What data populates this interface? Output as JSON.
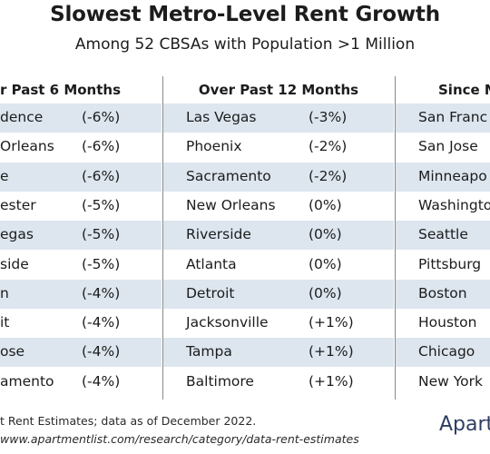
{
  "title": "Slowest Metro-Level Rent Growth",
  "subtitle": "Among 52 CBSAs with Population >1 Million",
  "chart_data": {
    "type": "table",
    "panels": [
      {
        "header": "r Past 6 Months",
        "rows": [
          {
            "city": "dence",
            "value": "(-6%)"
          },
          {
            "city": "Orleans",
            "value": "(-6%)"
          },
          {
            "city": "e",
            "value": "(-6%)"
          },
          {
            "city": "ester",
            "value": "(-5%)"
          },
          {
            "city": "egas",
            "value": "(-5%)"
          },
          {
            "city": "side",
            "value": "(-5%)"
          },
          {
            "city": "n",
            "value": "(-4%)"
          },
          {
            "city": "it",
            "value": "(-4%)"
          },
          {
            "city": "ose",
            "value": "(-4%)"
          },
          {
            "city": "amento",
            "value": "(-4%)"
          }
        ]
      },
      {
        "header": "Over Past 12 Months",
        "rows": [
          {
            "city": "Las Vegas",
            "value": "(-3%)"
          },
          {
            "city": "Phoenix",
            "value": "(-2%)"
          },
          {
            "city": "Sacramento",
            "value": "(-2%)"
          },
          {
            "city": "New Orleans",
            "value": "(0%)"
          },
          {
            "city": "Riverside",
            "value": "(0%)"
          },
          {
            "city": "Atlanta",
            "value": "(0%)"
          },
          {
            "city": "Detroit",
            "value": "(0%)"
          },
          {
            "city": "Jacksonville",
            "value": "(+1%)"
          },
          {
            "city": "Tampa",
            "value": "(+1%)"
          },
          {
            "city": "Baltimore",
            "value": "(+1%)"
          }
        ]
      },
      {
        "header": "Since M",
        "rows": [
          {
            "city": "San Franc",
            "value": ""
          },
          {
            "city": "San Jose",
            "value": ""
          },
          {
            "city": "Minneapo",
            "value": ""
          },
          {
            "city": "Washingto",
            "value": ""
          },
          {
            "city": "Seattle",
            "value": ""
          },
          {
            "city": "Pittsburg",
            "value": ""
          },
          {
            "city": "Boston",
            "value": ""
          },
          {
            "city": "Houston",
            "value": ""
          },
          {
            "city": "Chicago",
            "value": ""
          },
          {
            "city": "New York",
            "value": ""
          }
        ]
      }
    ]
  },
  "footnotes": {
    "source": "t Rent Estimates; data as of December 2022.",
    "url": "www.apartmentlist.com/research/category/data-rent-estimates"
  },
  "logo_text": "Apart",
  "colors": {
    "row_shade": "#dde6ef",
    "divider": "#8a8a8a",
    "logo": "#2f3d63"
  }
}
